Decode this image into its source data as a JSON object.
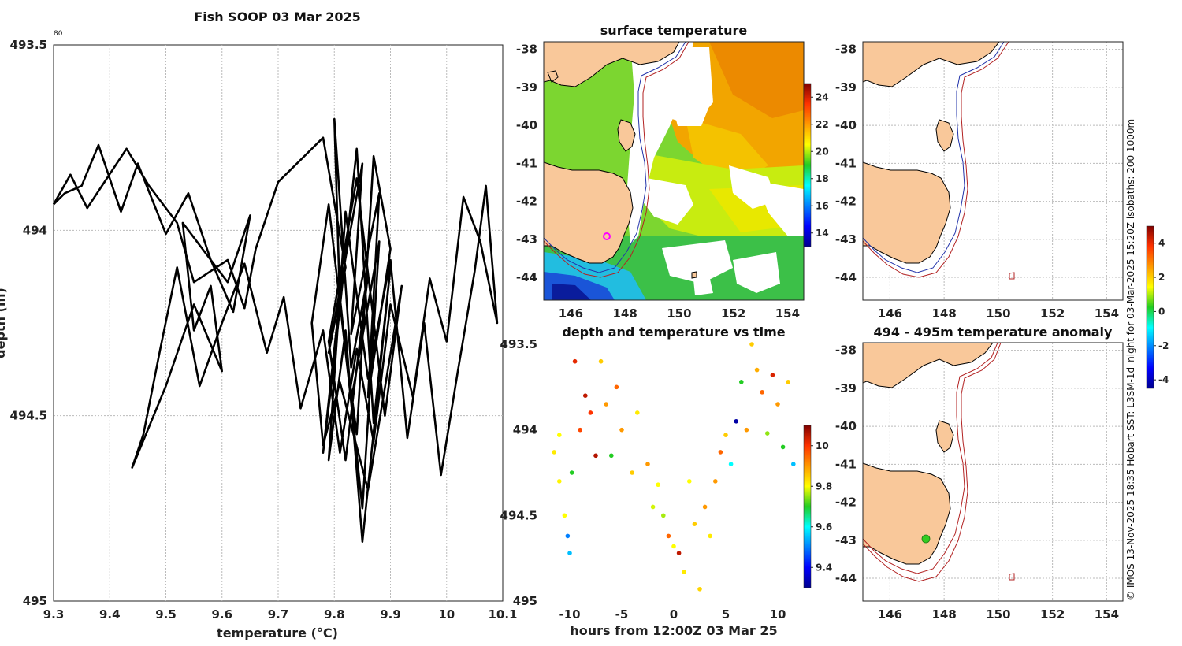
{
  "chart_data": [
    {
      "type": "line",
      "title": "Fish SOOP 03 Mar 2025",
      "xlabel": "temperature (°C)",
      "ylabel": "depth (m)",
      "corner_label": "80",
      "xlim": [
        9.3,
        10.1
      ],
      "ylim": [
        495,
        493.5
      ],
      "xticks": [
        "9.3",
        "9.4",
        "9.5",
        "9.6",
        "9.7",
        "9.8",
        "9.9",
        "10",
        "10.1"
      ],
      "yticks": [
        "493.5",
        "494",
        "494.5",
        "495"
      ],
      "x": [
        9.3,
        9.33,
        9.36,
        9.43,
        9.47,
        9.52,
        9.55,
        9.61,
        9.64,
        9.66,
        9.7,
        9.78,
        9.82,
        9.79,
        9.85,
        9.83,
        9.88,
        9.86,
        9.9,
        9.87,
        9.84,
        9.81,
        9.8,
        9.83,
        9.86,
        9.82,
        9.79,
        9.84,
        9.89,
        9.92,
        9.86,
        9.81,
        9.78,
        9.76,
        9.79,
        9.83,
        9.88,
        9.85,
        9.81,
        9.78,
        9.8,
        9.84,
        9.87,
        9.9,
        9.85,
        9.82,
        9.79,
        9.82,
        9.86,
        9.9,
        9.93,
        9.96,
        9.99,
        10.02,
        10.05,
        10.07,
        10.09,
        10.06,
        10.03,
        10.0,
        9.97,
        9.94,
        9.9,
        9.87,
        9.84,
        9.81,
        9.78,
        9.74,
        9.71,
        9.68,
        9.64,
        9.6,
        9.56,
        9.52,
        9.49,
        9.46,
        9.44,
        9.5,
        9.55,
        9.6,
        9.58,
        9.55,
        9.53,
        9.57,
        9.61,
        9.65,
        9.62,
        9.58,
        9.54,
        9.5,
        9.45,
        9.42,
        9.38,
        9.35,
        9.32,
        9.3
      ],
      "y": [
        493.93,
        493.85,
        493.94,
        493.78,
        493.88,
        493.98,
        494.14,
        494.08,
        494.21,
        494.05,
        493.87,
        493.75,
        494.1,
        494.33,
        493.82,
        494.28,
        493.9,
        494.45,
        494.05,
        493.8,
        494.55,
        494.2,
        493.7,
        494.37,
        494.12,
        494.62,
        494.3,
        493.86,
        494.5,
        494.15,
        494.7,
        494.41,
        494.58,
        494.25,
        493.93,
        494.46,
        494.03,
        494.75,
        494.18,
        494.6,
        494.35,
        493.78,
        494.52,
        494.1,
        494.84,
        494.27,
        494.62,
        493.95,
        494.4,
        494.08,
        494.56,
        494.25,
        494.66,
        494.38,
        494.11,
        493.88,
        494.25,
        494.03,
        493.91,
        494.3,
        494.13,
        494.45,
        494.2,
        494.57,
        494.32,
        494.6,
        494.27,
        494.48,
        494.18,
        494.33,
        494.09,
        494.25,
        494.42,
        494.1,
        494.32,
        494.55,
        494.64,
        494.42,
        494.2,
        494.38,
        494.15,
        494.27,
        493.98,
        494.06,
        494.14,
        493.96,
        494.22,
        494.08,
        493.9,
        494.01,
        493.82,
        493.95,
        493.77,
        493.88,
        493.9,
        493.93
      ]
    },
    {
      "type": "map",
      "title": "surface temperature",
      "xticks": [
        "146",
        "148",
        "150",
        "152",
        "154"
      ],
      "yticks": [
        "-38",
        "-39",
        "-40",
        "-41",
        "-42",
        "-43",
        "-44"
      ],
      "colorbar": {
        "min": 13,
        "max": 25,
        "ticks": [
          "14",
          "16",
          "18",
          "20",
          "22",
          "24"
        ]
      }
    },
    {
      "type": "map",
      "title": "",
      "xticks": [
        "146",
        "148",
        "150",
        "152",
        "154"
      ],
      "yticks": [
        "-38",
        "-39",
        "-40",
        "-41",
        "-42",
        "-43",
        "-44"
      ]
    },
    {
      "type": "scatter",
      "title": "depth and temperature vs time",
      "xlabel": "hours from 12:00Z 03 Mar 25",
      "xlim": [
        -12.5,
        12.5
      ],
      "ylim": [
        495,
        493.5
      ],
      "xticks": [
        "-10",
        "-5",
        "0",
        "5",
        "10"
      ],
      "yticks": [
        "493.5",
        "494",
        "494.5",
        "495"
      ],
      "colorbar": {
        "min": 9.3,
        "max": 10.1,
        "ticks": [
          "9.4",
          "9.6",
          "9.8",
          "10"
        ]
      },
      "points": [
        {
          "t": -11.5,
          "d": 494.13,
          "v": 9.82
        },
        {
          "t": -11.0,
          "d": 494.03,
          "v": 9.8
        },
        {
          "t": -11.0,
          "d": 494.3,
          "v": 9.81
        },
        {
          "t": -10.5,
          "d": 494.5,
          "v": 9.8
        },
        {
          "t": -10.2,
          "d": 494.62,
          "v": 9.5
        },
        {
          "t": -10.0,
          "d": 494.72,
          "v": 9.55
        },
        {
          "t": -9.8,
          "d": 494.25,
          "v": 9.7
        },
        {
          "t": -9.5,
          "d": 493.6,
          "v": 10.02
        },
        {
          "t": -9.0,
          "d": 494.0,
          "v": 9.98
        },
        {
          "t": -8.5,
          "d": 493.8,
          "v": 10.05
        },
        {
          "t": -8.0,
          "d": 493.9,
          "v": 10.0
        },
        {
          "t": -7.5,
          "d": 494.15,
          "v": 10.06
        },
        {
          "t": -7.0,
          "d": 493.6,
          "v": 9.85
        },
        {
          "t": -6.5,
          "d": 493.85,
          "v": 9.9
        },
        {
          "t": -6.0,
          "d": 494.15,
          "v": 9.7
        },
        {
          "t": -5.5,
          "d": 493.75,
          "v": 9.95
        },
        {
          "t": -5.0,
          "d": 494.0,
          "v": 9.9
        },
        {
          "t": -4.0,
          "d": 494.25,
          "v": 9.85
        },
        {
          "t": -3.5,
          "d": 493.9,
          "v": 9.82
        },
        {
          "t": -2.5,
          "d": 494.2,
          "v": 9.9
        },
        {
          "t": -2.0,
          "d": 494.45,
          "v": 9.78
        },
        {
          "t": -1.5,
          "d": 494.32,
          "v": 9.8
        },
        {
          "t": -1.0,
          "d": 494.5,
          "v": 9.76
        },
        {
          "t": -0.5,
          "d": 494.62,
          "v": 9.95
        },
        {
          "t": 0.0,
          "d": 494.68,
          "v": 9.8
        },
        {
          "t": 0.5,
          "d": 494.72,
          "v": 10.05
        },
        {
          "t": 1.0,
          "d": 494.83,
          "v": 9.82
        },
        {
          "t": 1.5,
          "d": 494.3,
          "v": 9.8
        },
        {
          "t": 2.0,
          "d": 494.55,
          "v": 9.85
        },
        {
          "t": 2.5,
          "d": 494.93,
          "v": 9.84
        },
        {
          "t": 3.0,
          "d": 494.45,
          "v": 9.9
        },
        {
          "t": 3.5,
          "d": 494.62,
          "v": 9.82
        },
        {
          "t": 4.0,
          "d": 494.3,
          "v": 9.9
        },
        {
          "t": 4.5,
          "d": 494.13,
          "v": 9.95
        },
        {
          "t": 5.0,
          "d": 494.03,
          "v": 9.85
        },
        {
          "t": 5.5,
          "d": 494.2,
          "v": 9.6
        },
        {
          "t": 6.0,
          "d": 493.95,
          "v": 9.32
        },
        {
          "t": 6.5,
          "d": 493.72,
          "v": 9.7
        },
        {
          "t": 7.0,
          "d": 494.0,
          "v": 9.9
        },
        {
          "t": 7.5,
          "d": 493.5,
          "v": 9.85
        },
        {
          "t": 8.0,
          "d": 493.65,
          "v": 9.88
        },
        {
          "t": 8.5,
          "d": 493.78,
          "v": 9.95
        },
        {
          "t": 9.0,
          "d": 494.02,
          "v": 9.75
        },
        {
          "t": 9.5,
          "d": 493.68,
          "v": 10.03
        },
        {
          "t": 10.0,
          "d": 493.85,
          "v": 9.9
        },
        {
          "t": 10.5,
          "d": 494.1,
          "v": 9.7
        },
        {
          "t": 11.0,
          "d": 493.72,
          "v": 9.85
        },
        {
          "t": 11.5,
          "d": 494.2,
          "v": 9.55
        }
      ]
    },
    {
      "type": "map",
      "title": "494 - 495m temperature anomaly",
      "xticks": [
        "146",
        "148",
        "150",
        "152",
        "154"
      ],
      "yticks": [
        "-38",
        "-39",
        "-40",
        "-41",
        "-42",
        "-43",
        "-44"
      ],
      "colorbar": {
        "min": -4.5,
        "max": 5,
        "ticks": [
          "4",
          "2",
          "0",
          "-2",
          "-4"
        ]
      }
    }
  ],
  "credit": "© IMOS 13-Nov-2025 18:35 Hobart SST: L3SM-1d_night for 03-Mar-2025 15:20Z isobaths: 200  1000m",
  "colors": {
    "land": "#f9c89a",
    "track": "#000000",
    "isobath200": "#2233aa",
    "isobath1000": "#b22222"
  }
}
